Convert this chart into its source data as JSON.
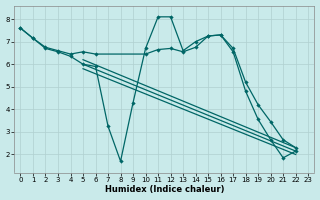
{
  "background_color": "#c9eaea",
  "grid_color": "#b0d0d0",
  "line_color": "#006666",
  "xlabel": "Humidex (Indice chaleur)",
  "xlim": [
    -0.5,
    23.5
  ],
  "ylim": [
    1.2,
    8.6
  ],
  "xticks": [
    0,
    1,
    2,
    3,
    4,
    5,
    6,
    7,
    8,
    9,
    10,
    11,
    12,
    13,
    14,
    15,
    16,
    17,
    18,
    19,
    20,
    21,
    22,
    23
  ],
  "yticks": [
    2,
    3,
    4,
    5,
    6,
    7,
    8
  ],
  "s1_x": [
    0,
    1,
    2,
    3,
    4,
    5,
    6,
    7,
    8,
    9,
    10,
    11,
    12,
    13,
    14,
    15,
    16,
    17,
    18,
    19,
    20,
    21,
    22
  ],
  "s1_y": [
    7.6,
    7.15,
    6.7,
    6.55,
    6.35,
    6.0,
    5.9,
    3.25,
    1.7,
    4.3,
    6.7,
    8.1,
    8.1,
    6.6,
    7.0,
    7.25,
    7.3,
    6.55,
    4.8,
    3.55,
    2.65,
    1.85,
    2.15
  ],
  "s2_x": [
    0,
    1,
    2,
    3,
    4,
    5,
    6,
    10,
    11,
    12,
    13,
    14,
    15,
    16,
    17,
    18,
    19,
    20,
    21,
    22
  ],
  "s2_y": [
    7.6,
    7.15,
    6.75,
    6.6,
    6.45,
    6.55,
    6.45,
    6.45,
    6.65,
    6.7,
    6.55,
    6.75,
    7.25,
    7.3,
    6.7,
    5.2,
    4.2,
    3.45,
    2.65,
    2.3
  ],
  "diag_lines": [
    {
      "x": [
        5,
        22
      ],
      "y": [
        6.2,
        2.3
      ]
    },
    {
      "x": [
        5,
        22
      ],
      "y": [
        6.0,
        2.15
      ]
    },
    {
      "x": [
        5,
        22
      ],
      "y": [
        5.8,
        2.0
      ]
    }
  ]
}
